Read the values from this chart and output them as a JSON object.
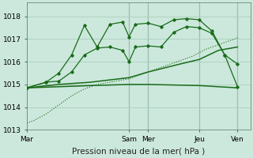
{
  "background_color": "#cce8dc",
  "grid_color": "#aacfbe",
  "line_color": "#1a6b1a",
  "ylim": [
    1013.0,
    1018.6
  ],
  "yticks": [
    1013,
    1014,
    1015,
    1016,
    1017,
    1018
  ],
  "xlabel": "Pression niveau de la mer( hPa )",
  "xtick_labels": [
    "Mar",
    "Sam",
    "Mer",
    "Jeu",
    "Ven"
  ],
  "xtick_positions": [
    0,
    16,
    19,
    27,
    33
  ],
  "xlim": [
    0,
    35
  ],
  "vlines_x": [
    16,
    19,
    27,
    33
  ],
  "series": {
    "dotted_rising": {
      "x": [
        0,
        1,
        2,
        3,
        4,
        5,
        6,
        7,
        8,
        9,
        10,
        11,
        12,
        13,
        14,
        15,
        16,
        17,
        18,
        19,
        20,
        21,
        22,
        23,
        24,
        25,
        26,
        27,
        28,
        29,
        30,
        31,
        32,
        33
      ],
      "y": [
        1013.3,
        1013.4,
        1013.55,
        1013.7,
        1013.9,
        1014.1,
        1014.3,
        1014.5,
        1014.65,
        1014.8,
        1014.9,
        1015.0,
        1015.05,
        1015.1,
        1015.15,
        1015.2,
        1015.25,
        1015.35,
        1015.45,
        1015.55,
        1015.65,
        1015.75,
        1015.85,
        1015.95,
        1016.05,
        1016.15,
        1016.25,
        1016.4,
        1016.55,
        1016.65,
        1016.75,
        1016.85,
        1016.95,
        1017.05
      ],
      "linestyle": "dotted",
      "marker": null,
      "lw": 0.8
    },
    "flat_low": {
      "x": [
        0,
        5,
        10,
        16,
        19,
        27,
        33
      ],
      "y": [
        1014.85,
        1014.9,
        1014.95,
        1015.0,
        1015.0,
        1014.95,
        1014.85
      ],
      "linestyle": "solid",
      "marker": null,
      "lw": 1.1
    },
    "smooth_rising": {
      "x": [
        0,
        5,
        10,
        16,
        19,
        24,
        27,
        30,
        33
      ],
      "y": [
        1014.85,
        1015.0,
        1015.1,
        1015.3,
        1015.55,
        1015.9,
        1016.1,
        1016.5,
        1016.65
      ],
      "linestyle": "solid",
      "marker": null,
      "lw": 1.1
    },
    "jagged_lower": {
      "x": [
        0,
        3,
        5,
        7,
        9,
        11,
        13,
        15,
        16,
        17,
        19,
        21,
        23,
        25,
        27,
        29,
        31,
        33
      ],
      "y": [
        1014.85,
        1015.1,
        1015.15,
        1015.55,
        1016.3,
        1016.6,
        1016.65,
        1016.5,
        1016.0,
        1016.65,
        1016.7,
        1016.65,
        1017.3,
        1017.55,
        1017.5,
        1017.25,
        1016.3,
        1015.9
      ],
      "linestyle": "solid",
      "marker": "D",
      "lw": 0.9
    },
    "jagged_upper": {
      "x": [
        0,
        3,
        5,
        7,
        9,
        11,
        13,
        15,
        16,
        17,
        19,
        21,
        23,
        25,
        27,
        29,
        31,
        33
      ],
      "y": [
        1014.85,
        1015.1,
        1015.5,
        1016.3,
        1017.6,
        1016.65,
        1017.65,
        1017.75,
        1017.1,
        1017.65,
        1017.7,
        1017.55,
        1017.85,
        1017.9,
        1017.85,
        1017.35,
        1016.3,
        1014.9
      ],
      "linestyle": "solid",
      "marker": "D",
      "lw": 0.9
    }
  },
  "xlabel_fontsize": 7.5,
  "tick_fontsize": 6.5,
  "fig_width": 3.2,
  "fig_height": 2.0,
  "dpi": 100
}
